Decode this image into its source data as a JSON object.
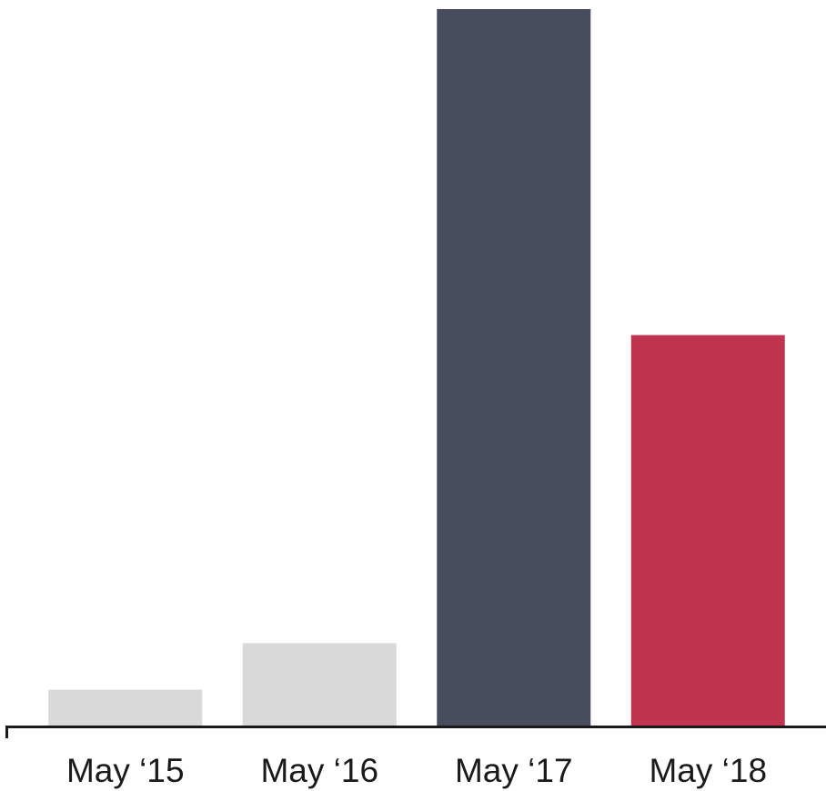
{
  "chart_data": {
    "type": "bar",
    "categories": [
      "May ‘15",
      "May ‘16",
      "May ‘17",
      "May ‘18"
    ],
    "values": [
      5,
      11.5,
      100,
      54.5
    ],
    "colors": [
      "#d9d9d9",
      "#d9d9d9",
      "#484d5e",
      "#c0344f"
    ],
    "ylim": [
      0,
      100
    ]
  }
}
